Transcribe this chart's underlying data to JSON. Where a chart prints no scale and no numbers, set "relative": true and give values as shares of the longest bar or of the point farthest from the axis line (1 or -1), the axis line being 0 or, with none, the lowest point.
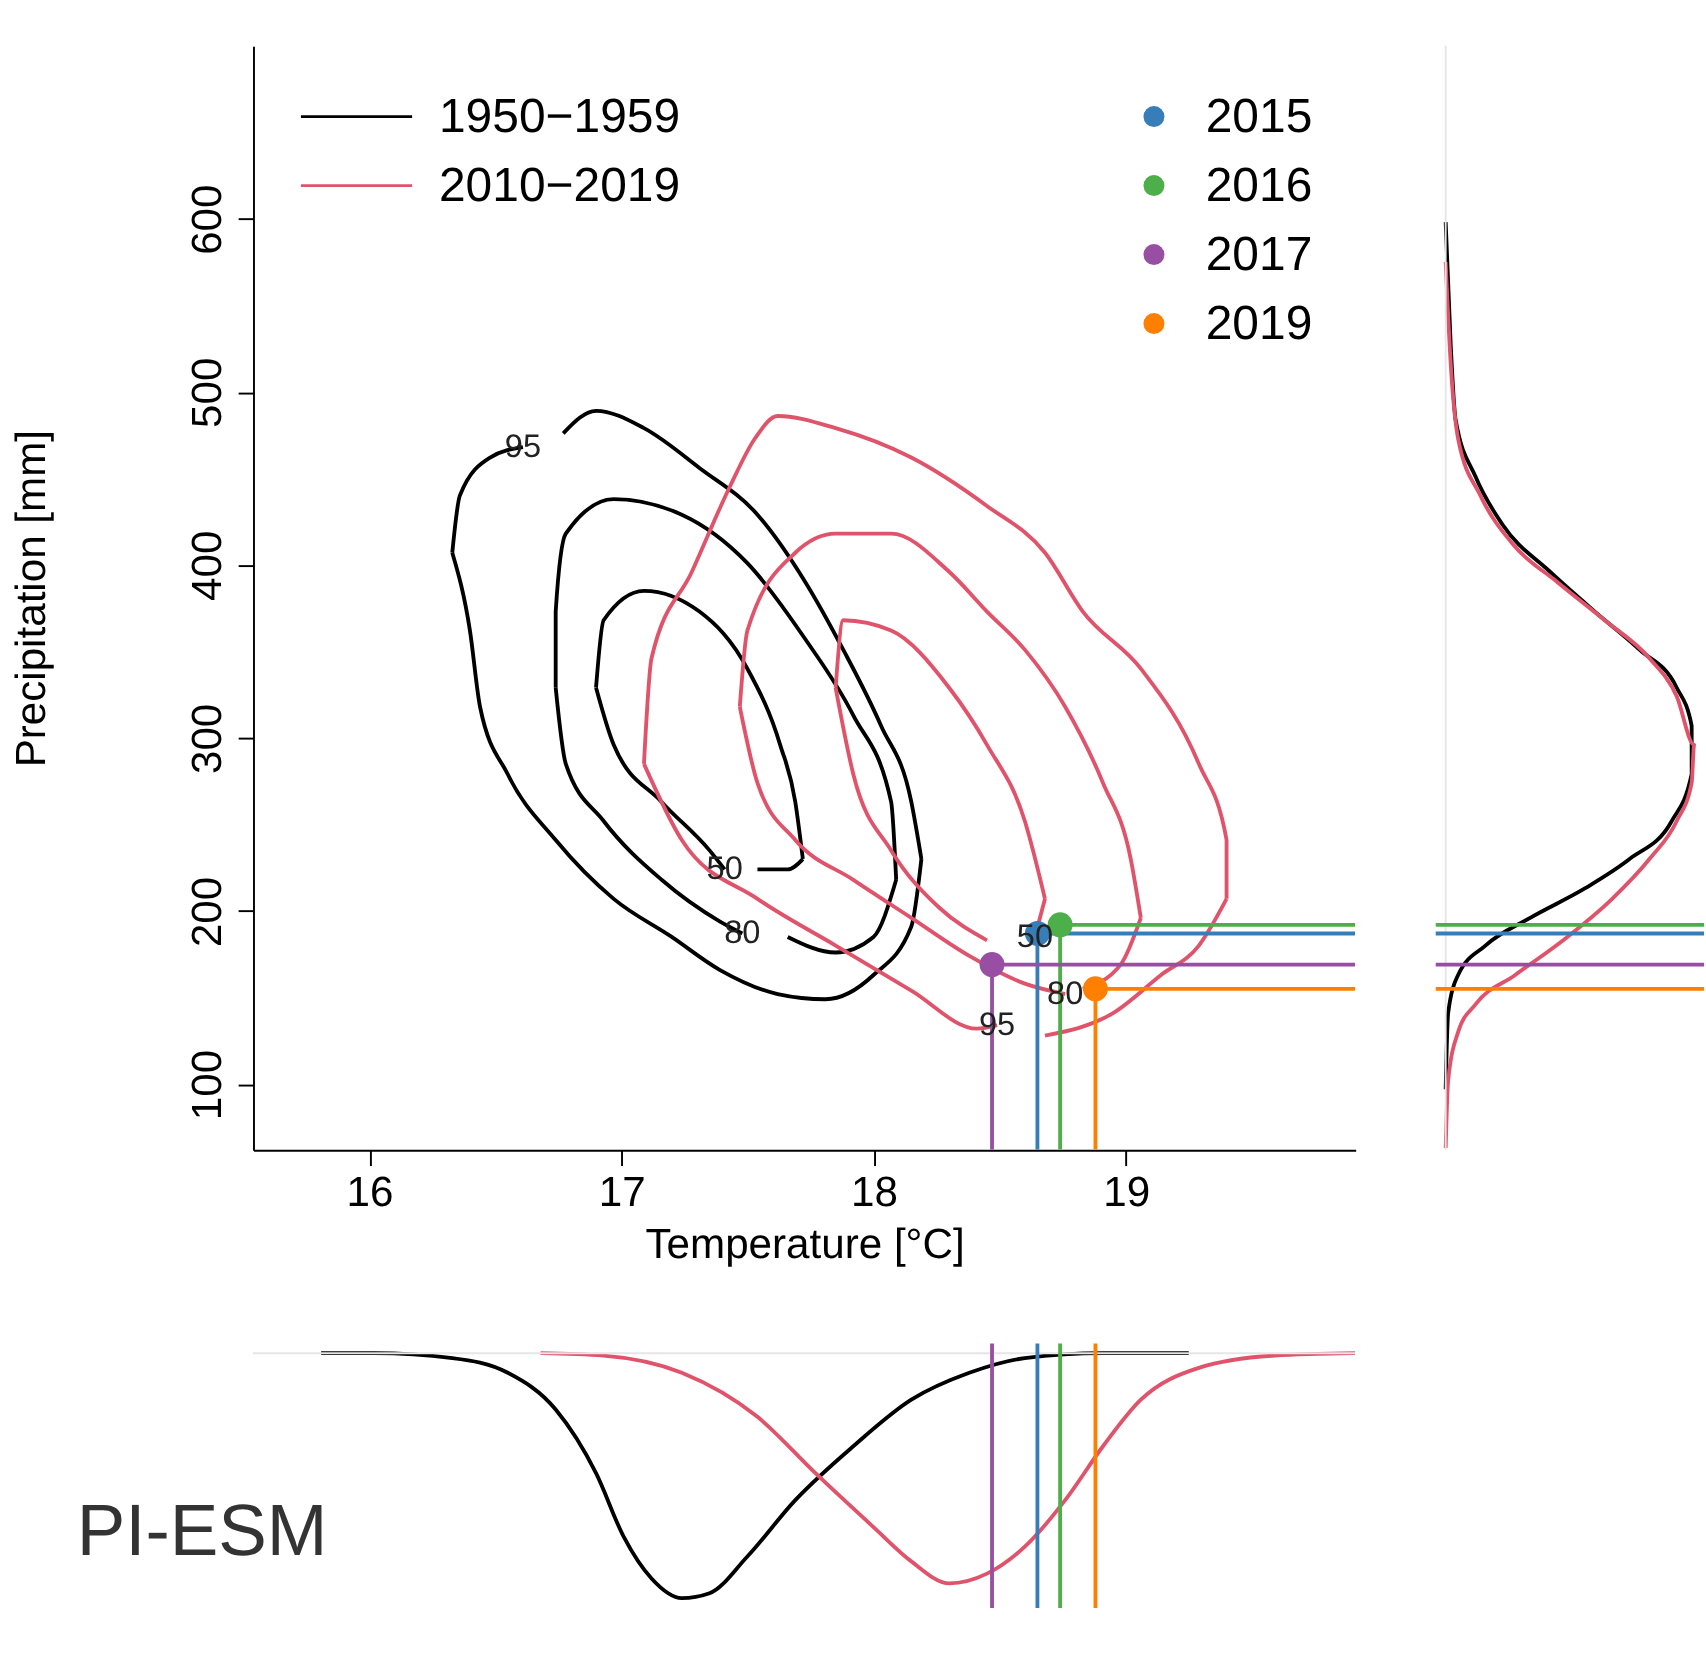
{
  "chart_data": [
    {
      "type": "line",
      "xlabel": "Temperature [°C]",
      "ylabel": "Precipitation [mm]",
      "xlim": [
        15.54,
        19.91
      ],
      "ylim": [
        62,
        700
      ],
      "xticks": [
        16,
        17,
        18,
        19
      ],
      "yticks": [
        100,
        200,
        300,
        400,
        500,
        600
      ],
      "legend": "top",
      "series": [
        {
          "name": "1950−1959",
          "color": "#000000",
          "x": [
            16.33,
            16.36,
            16.48,
            16.61
          ],
          "values": [
            407,
            440,
            462,
            468
          ]
        },
        {
          "color": "#000000",
          "x": [
            16.77,
            16.9,
            17.09,
            17.31,
            17.54,
            17.73,
            17.88,
            18.03,
            18.15,
            18.19
          ],
          "values": [
            476,
            489,
            479,
            456,
            429,
            390,
            351,
            307,
            263,
            230
          ]
        },
        {
          "color": "#000000",
          "x": [
            16.33,
            16.4,
            16.44,
            16.55,
            16.74,
            16.97,
            17.2,
            17.39,
            17.62,
            17.81,
            18.0,
            18.15,
            18.19
          ],
          "values": [
            407,
            362,
            318,
            279,
            241,
            207,
            185,
            166,
            152,
            149,
            163,
            191,
            230
          ]
        },
        {
          "color": "#000000",
          "x": [
            16.74,
            16.74,
            16.78,
            16.97,
            17.24,
            17.5,
            17.73,
            17.92,
            18.07,
            18.09
          ],
          "values": [
            329,
            373,
            418,
            438,
            429,
            401,
            357,
            313,
            263,
            218
          ]
        },
        {
          "color": "#000000",
          "x": [
            16.74,
            16.78,
            16.93,
            17.16,
            17.39,
            17.48
          ],
          "values": [
            329,
            285,
            252,
            218,
            194,
            187
          ]
        },
        {
          "color": "#000000",
          "x": [
            17.66,
            17.85,
            18.0,
            18.09
          ],
          "values": [
            185,
            176,
            185,
            218
          ]
        },
        {
          "color": "#000000",
          "x": [
            16.9,
            16.93,
            17.09,
            17.31,
            17.5,
            17.63,
            17.69,
            17.72
          ],
          "values": [
            329,
            368,
            385,
            373,
            340,
            296,
            263,
            230
          ]
        },
        {
          "color": "#000000",
          "x": [
            16.9,
            16.97,
            17.16,
            17.35,
            17.41
          ],
          "values": [
            329,
            296,
            263,
            235,
            224
          ]
        },
        {
          "color": "#000000",
          "x": [
            17.54,
            17.66,
            17.72
          ],
          "values": [
            224,
            224,
            230
          ]
        },
        {
          "name": "2010−2019",
          "color": "#df536b",
          "x": [
            17.09,
            17.12,
            17.28,
            17.43,
            17.53,
            17.62,
            17.85,
            18.15,
            18.45,
            18.68,
            18.83,
            19.06,
            19.29,
            19.4,
            19.4
          ],
          "values": [
            285,
            346,
            396,
            445,
            473,
            486,
            479,
            462,
            434,
            407,
            373,
            340,
            285,
            241,
            207
          ]
        },
        {
          "color": "#df536b",
          "x": [
            17.09,
            17.24,
            17.54,
            17.85,
            18.15,
            18.41,
            18.49
          ],
          "values": [
            285,
            241,
            207,
            180,
            154,
            132,
            134
          ]
        },
        {
          "color": "#df536b",
          "x": [
            18.68,
            18.95,
            19.14,
            19.29,
            19.4
          ],
          "values": [
            128,
            141,
            163,
            180,
            207
          ]
        },
        {
          "color": "#df536b",
          "x": [
            17.47,
            17.5,
            17.69,
            17.85,
            18.07,
            18.3,
            18.45,
            18.6,
            18.76,
            18.91,
            19.02,
            19.06
          ],
          "values": [
            318,
            362,
            407,
            418,
            418,
            396,
            373,
            351,
            318,
            274,
            230,
            196
          ]
        },
        {
          "color": "#df536b",
          "x": [
            17.47,
            17.54,
            17.69,
            17.92,
            18.15,
            18.38,
            18.6,
            18.76
          ],
          "values": [
            318,
            274,
            241,
            218,
            196,
            174,
            158,
            152
          ]
        },
        {
          "color": "#df536b",
          "x": [
            18.83,
            18.98,
            19.06
          ],
          "values": [
            155,
            169,
            196
          ]
        },
        {
          "color": "#df536b",
          "x": [
            17.85,
            17.88,
            18.07,
            18.3,
            18.45,
            18.6,
            18.68
          ],
          "values": [
            329,
            368,
            362,
            329,
            296,
            252,
            207
          ]
        },
        {
          "color": "#df536b",
          "x": [
            17.85,
            17.92,
            18.07,
            18.26,
            18.45
          ],
          "values": [
            329,
            279,
            235,
            202,
            183
          ]
        },
        {
          "color": "#df536b",
          "x": [
            18.64,
            18.68
          ],
          "values": [
            185,
            207
          ]
        },
        {
          "type": "line",
          "color": "#377eb8",
          "x": [
            18.65,
            19.91
          ],
          "values": [
            187,
            187
          ]
        },
        {
          "type": "line",
          "color": "#377eb8",
          "x": [
            18.65,
            18.65
          ],
          "values": [
            187,
            62
          ]
        },
        {
          "type": "line",
          "color": "#4daf4a",
          "x": [
            18.74,
            19.91
          ],
          "values": [
            192,
            192
          ]
        },
        {
          "type": "line",
          "color": "#4daf4a",
          "x": [
            18.74,
            18.74
          ],
          "values": [
            192,
            62
          ]
        },
        {
          "type": "line",
          "color": "#984ea3",
          "x": [
            18.47,
            19.91
          ],
          "values": [
            169,
            169
          ]
        },
        {
          "type": "line",
          "color": "#984ea3",
          "x": [
            18.47,
            18.47
          ],
          "values": [
            169,
            62
          ]
        },
        {
          "type": "line",
          "color": "#ff7f00",
          "x": [
            18.88,
            19.91
          ],
          "values": [
            155,
            155
          ]
        },
        {
          "type": "line",
          "color": "#ff7f00",
          "x": [
            18.88,
            18.88
          ],
          "values": [
            155,
            62
          ]
        },
        {
          "type": "scatter",
          "marker": "circle",
          "name": "2015",
          "color": "#377eb8",
          "x": [
            18.65
          ],
          "values": [
            187
          ]
        },
        {
          "type": "scatter",
          "marker": "circle",
          "name": "2016",
          "color": "#4daf4a",
          "x": [
            18.74
          ],
          "values": [
            192
          ]
        },
        {
          "type": "scatter",
          "marker": "circle",
          "name": "2017",
          "color": "#984ea3",
          "x": [
            18.47
          ],
          "values": [
            169
          ]
        },
        {
          "type": "scatter",
          "marker": "circle",
          "name": "2019",
          "color": "#ff7f00",
          "x": [
            18.88
          ],
          "values": [
            155
          ]
        }
      ],
      "annotations": [
        {
          "text": "95",
          "x": 16.61,
          "y": 468
        },
        {
          "text": "80",
          "x": 17.48,
          "y": 187
        },
        {
          "text": "50",
          "x": 17.41,
          "y": 224
        },
        {
          "text": "95",
          "x": 18.49,
          "y": 134
        },
        {
          "text": "80",
          "x": 18.76,
          "y": 152
        },
        {
          "text": "50",
          "x": 18.64,
          "y": 185
        }
      ]
    },
    {
      "type": "line",
      "orientation": "horizontal",
      "relative": true,
      "ylim": [
        62,
        700
      ],
      "tick_labels": false,
      "series": [
        {
          "color": "#000000",
          "x": [
            598,
            528,
            484,
            451,
            423,
            396,
            373,
            351,
            329,
            307,
            279,
            252,
            230,
            213,
            196,
            180,
            163,
            141,
            97
          ],
          "values": [
            0,
            0.02,
            0.04,
            0.12,
            0.23,
            0.42,
            0.6,
            0.78,
            0.93,
            0.99,
            0.99,
            0.91,
            0.74,
            0.56,
            0.34,
            0.16,
            0.05,
            0.01,
            0
          ]
        },
        {
          "color": "#df536b",
          "x": [
            575,
            517,
            473,
            440,
            412,
            390,
            368,
            346,
            324,
            296,
            274,
            252,
            230,
            207,
            185,
            163,
            146,
            130,
            102,
            63
          ],
          "values": [
            0,
            0.02,
            0.05,
            0.14,
            0.27,
            0.45,
            0.64,
            0.82,
            0.93,
            1.0,
            0.99,
            0.93,
            0.82,
            0.67,
            0.49,
            0.28,
            0.12,
            0.05,
            0.01,
            0
          ]
        }
      ],
      "ref_lines": [
        {
          "axis": "y",
          "value": 187,
          "color": "#377eb8"
        },
        {
          "axis": "y",
          "value": 192,
          "color": "#4daf4a"
        },
        {
          "axis": "y",
          "value": 169,
          "color": "#984ea3"
        },
        {
          "axis": "y",
          "value": 155,
          "color": "#ff7f00"
        }
      ]
    },
    {
      "type": "line",
      "relative": true,
      "xlim": [
        15.54,
        19.91
      ],
      "tick_labels": false,
      "series": [
        {
          "color": "#000000",
          "x": [
            15.81,
            16.02,
            16.33,
            16.55,
            16.74,
            16.9,
            17.01,
            17.12,
            17.24,
            17.35,
            17.5,
            17.69,
            17.92,
            18.15,
            18.38,
            18.6,
            18.91,
            19.25
          ],
          "values": [
            0,
            0,
            -0.02,
            -0.08,
            -0.23,
            -0.49,
            -0.75,
            -0.92,
            -1,
            -0.98,
            -0.83,
            -0.6,
            -0.38,
            -0.19,
            -0.08,
            -0.02,
            0,
            0
          ]
        },
        {
          "color": "#df536b",
          "x": [
            16.68,
            16.93,
            17.24,
            17.54,
            17.77,
            18.0,
            18.15,
            18.3,
            18.45,
            18.6,
            18.76,
            18.91,
            19.06,
            19.29,
            19.59,
            19.91
          ],
          "values": [
            0,
            -0.01,
            -0.08,
            -0.26,
            -0.49,
            -0.71,
            -0.85,
            -0.94,
            -0.9,
            -0.79,
            -0.6,
            -0.38,
            -0.19,
            -0.06,
            -0.01,
            0
          ]
        }
      ],
      "ref_lines": [
        {
          "axis": "x",
          "value": 18.65,
          "color": "#377eb8"
        },
        {
          "axis": "x",
          "value": 18.74,
          "color": "#4daf4a"
        },
        {
          "axis": "x",
          "value": 18.47,
          "color": "#984ea3"
        },
        {
          "axis": "x",
          "value": 18.88,
          "color": "#ff7f00"
        }
      ],
      "annotations": [
        "PI-ESM"
      ]
    }
  ]
}
